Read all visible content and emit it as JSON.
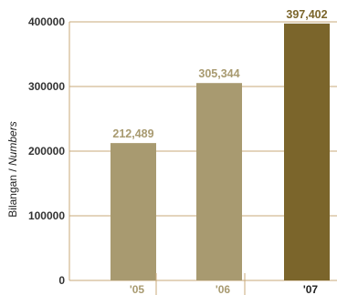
{
  "chart_data": {
    "type": "bar",
    "categories": [
      "'05",
      "'06",
      "'07"
    ],
    "values": [
      212489,
      305344,
      397402
    ],
    "data_labels": [
      "212,489",
      "305,344",
      "397,402"
    ],
    "ylabel_main": "Bilangan / ",
    "ylabel_italic": "Numbers",
    "xlabel": "",
    "ylim": [
      0,
      400000
    ],
    "yticks": [
      0,
      100000,
      200000,
      300000,
      400000
    ],
    "ytick_labels": [
      "0",
      "100000",
      "200000",
      "300000",
      "400000"
    ],
    "grid": true,
    "legend": "none",
    "colors": {
      "bar": "#a89a70",
      "bar_highlight": "#7b652b",
      "label": "#a89a70",
      "label_highlight": "#7b652b",
      "axis": "#c9a878",
      "tick_text": "#333333"
    },
    "highlight_index": 2
  }
}
